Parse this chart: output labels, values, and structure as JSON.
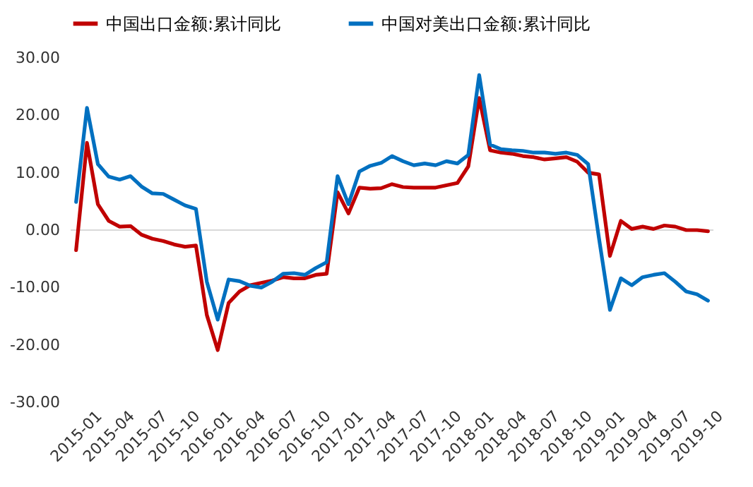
{
  "chart_data": {
    "type": "line",
    "categories": [
      "2015-01",
      null,
      null,
      "2015-04",
      null,
      null,
      "2015-07",
      null,
      null,
      "2015-10",
      null,
      null,
      "2016-01",
      null,
      null,
      "2016-04",
      null,
      null,
      "2016-07",
      null,
      null,
      "2016-10",
      null,
      null,
      "2017-01",
      null,
      null,
      "2017-04",
      null,
      null,
      "2017-07",
      null,
      null,
      "2017-10",
      null,
      null,
      "2018-01",
      null,
      null,
      "2018-04",
      null,
      null,
      "2018-07",
      null,
      null,
      "2018-10",
      null,
      null,
      "2019-01",
      null,
      null,
      "2019-04",
      null,
      null,
      "2019-07",
      null,
      null,
      "2019-10",
      null
    ],
    "series": [
      {
        "name": "中国出口金额:累计同比",
        "color": "#c00000",
        "values": [
          -3.5,
          15.2,
          4.5,
          1.6,
          0.6,
          0.7,
          -0.8,
          -1.5,
          -1.9,
          -2.5,
          -2.9,
          -2.7,
          -14.8,
          -20.9,
          -12.7,
          -10.7,
          -9.6,
          -9.2,
          -8.8,
          -8.2,
          -8.4,
          -8.4,
          -7.8,
          -7.6,
          6.6,
          2.9,
          7.4,
          7.2,
          7.3,
          8.0,
          7.5,
          7.4,
          7.4,
          7.4,
          7.8,
          8.2,
          11.1,
          23.0,
          13.9,
          13.5,
          13.3,
          12.9,
          12.7,
          12.3,
          12.5,
          12.7,
          11.9,
          10.0,
          9.7,
          -4.5,
          1.6,
          0.2,
          0.6,
          0.2,
          0.8,
          0.6,
          0.0,
          0.0,
          -0.2
        ]
      },
      {
        "name": "中国对美出口金额:累计同比",
        "color": "#0070c0",
        "values": [
          4.9,
          21.3,
          11.5,
          9.3,
          8.8,
          9.4,
          7.6,
          6.4,
          6.3,
          5.3,
          4.3,
          3.7,
          -9.0,
          -15.6,
          -8.6,
          -8.9,
          -9.7,
          -10.0,
          -9.0,
          -7.6,
          -7.5,
          -7.8,
          -6.6,
          -5.6,
          9.4,
          4.5,
          10.2,
          11.2,
          11.7,
          12.9,
          12.0,
          11.3,
          11.6,
          11.3,
          12.0,
          11.6,
          13.1,
          27.0,
          14.9,
          14.1,
          13.9,
          13.8,
          13.5,
          13.5,
          13.3,
          13.5,
          13.1,
          11.5,
          -1.5,
          -13.9,
          -8.4,
          -9.6,
          -8.2,
          -7.8,
          -7.5,
          -9.0,
          -10.7,
          -11.2,
          -12.3
        ]
      }
    ],
    "ylim": [
      -30,
      30
    ],
    "yticks": [
      {
        "value": -30,
        "label": "-30.00"
      },
      {
        "value": -20,
        "label": "-20.00"
      },
      {
        "value": -10,
        "label": "-10.00"
      },
      {
        "value": 0,
        "label": "0.00"
      },
      {
        "value": 10,
        "label": "10.00"
      },
      {
        "value": 20,
        "label": "20.00"
      },
      {
        "value": 30,
        "label": "30.00"
      }
    ],
    "ref_lines": [
      {
        "axis": "y",
        "value": 0,
        "color": "#d9d9d9"
      }
    ],
    "legend": "top",
    "grid": false
  }
}
